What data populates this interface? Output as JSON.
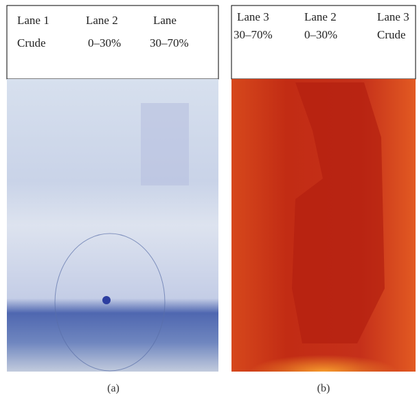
{
  "panels": [
    {
      "lanes": [
        {
          "name": "Lane 1",
          "fraction": "Crude"
        },
        {
          "name": "Lane 2",
          "fraction": "0–30%"
        },
        {
          "name": "Lane",
          "fraction": "30–70%"
        }
      ],
      "caption": "(a)"
    },
    {
      "lanes": [
        {
          "name": "Lane 3",
          "fraction": "30–70%"
        },
        {
          "name": "Lane 2",
          "fraction": "0–30%"
        },
        {
          "name": "Lane 3",
          "fraction": "Crude"
        }
      ],
      "caption": "(b)"
    }
  ]
}
